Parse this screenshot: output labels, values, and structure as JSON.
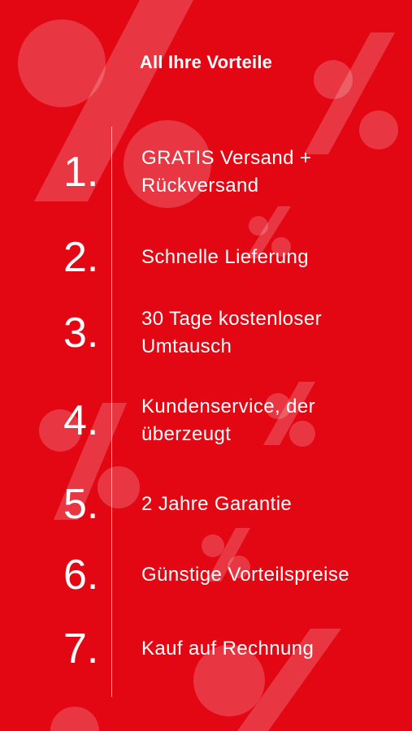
{
  "title": "All Ihre Vorteile",
  "theme": {
    "background": "#e30613",
    "text": "#ffffff",
    "watermark": "percent-icon"
  },
  "benefits": [
    {
      "number": "1.",
      "label": "GRATIS Versand + Rückversand"
    },
    {
      "number": "2.",
      "label": "Schnelle Lieferung"
    },
    {
      "number": "3.",
      "label": "30 Tage kostenloser Umtausch"
    },
    {
      "number": "4.",
      "label": "Kundenservice, der überzeugt"
    },
    {
      "number": "5.",
      "label": "2 Jahre Garantie"
    },
    {
      "number": "6.",
      "label": "Günstige Vorteilspreise"
    },
    {
      "number": "7.",
      "label": "Kauf auf Rechnung"
    }
  ]
}
